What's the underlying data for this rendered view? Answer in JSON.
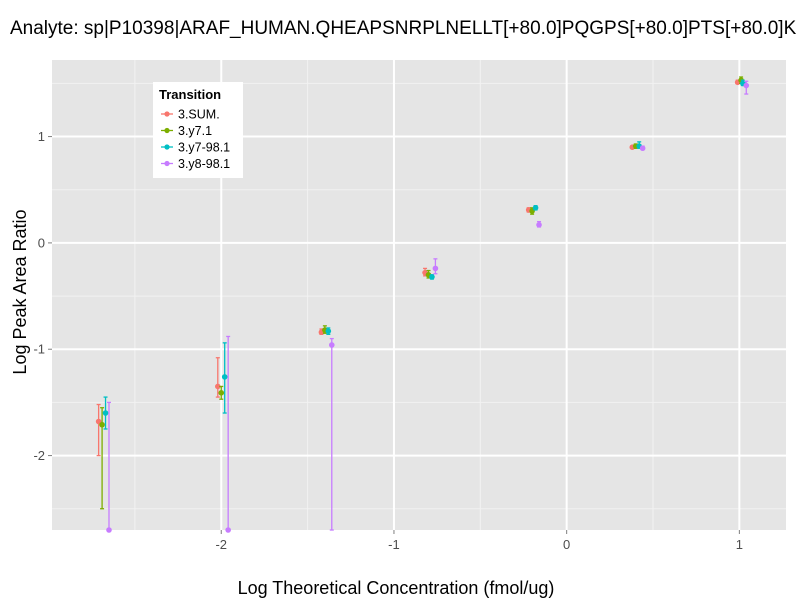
{
  "chart_data": {
    "type": "scatter",
    "title": "Analyte: sp|P10398|ARAF_HUMAN.QHEAPSNRPLNELLT[+80.0]PQGPS[+80.0]PTS[+80.0]K",
    "xlabel": "Log Theoretical Concentration (fmol/ug)",
    "ylabel": "Log Peak Area Ratio",
    "xlim": [
      -2.98,
      1.27
    ],
    "ylim": [
      -2.7,
      1.72
    ],
    "x_ticks": [
      {
        "value": -2,
        "label": "-2"
      },
      {
        "value": -1,
        "label": "-1"
      },
      {
        "value": 0,
        "label": "0"
      },
      {
        "value": 1,
        "label": "1"
      }
    ],
    "y_ticks": [
      {
        "value": -2,
        "label": "-2"
      },
      {
        "value": -1,
        "label": "-1"
      },
      {
        "value": 0,
        "label": "0"
      },
      {
        "value": 1,
        "label": "1"
      }
    ],
    "legend": {
      "title": "Transition",
      "position": "top-left"
    },
    "series": [
      {
        "name": "3.SUM.",
        "color": "#F8766D",
        "points": [
          {
            "x": -2.71,
            "y": -1.68,
            "ymin": -2.0,
            "ymax": -1.52
          },
          {
            "x": -2.02,
            "y": -1.35,
            "ymin": -1.45,
            "ymax": -1.08
          },
          {
            "x": -1.42,
            "y": -0.84,
            "ymin": -0.86,
            "ymax": -0.81
          },
          {
            "x": -0.82,
            "y": -0.28,
            "ymin": -0.31,
            "ymax": -0.24
          },
          {
            "x": -0.22,
            "y": 0.31,
            "ymin": 0.29,
            "ymax": 0.33
          },
          {
            "x": 0.38,
            "y": 0.9,
            "ymin": 0.89,
            "ymax": 0.91
          },
          {
            "x": 0.99,
            "y": 1.51,
            "ymin": 1.5,
            "ymax": 1.53
          }
        ]
      },
      {
        "name": "3.y7.1",
        "color": "#7CAE00",
        "points": [
          {
            "x": -2.69,
            "y": -1.71,
            "ymin": -2.5,
            "ymax": -1.55
          },
          {
            "x": -2.0,
            "y": -1.41,
            "ymin": -1.47,
            "ymax": -1.35
          },
          {
            "x": -1.4,
            "y": -0.82,
            "ymin": -0.85,
            "ymax": -0.78
          },
          {
            "x": -0.8,
            "y": -0.3,
            "ymin": -0.33,
            "ymax": -0.26
          },
          {
            "x": -0.2,
            "y": 0.3,
            "ymin": 0.27,
            "ymax": 0.33
          },
          {
            "x": 0.4,
            "y": 0.91,
            "ymin": 0.89,
            "ymax": 0.93
          },
          {
            "x": 1.01,
            "y": 1.53,
            "ymin": 1.5,
            "ymax": 1.56
          }
        ]
      },
      {
        "name": "3.y7-98.1",
        "color": "#00BFC4",
        "points": [
          {
            "x": -2.67,
            "y": -1.6,
            "ymin": -1.75,
            "ymax": -1.45
          },
          {
            "x": -1.98,
            "y": -1.26,
            "ymin": -1.6,
            "ymax": -0.94
          },
          {
            "x": -1.38,
            "y": -0.83,
            "ymin": -0.86,
            "ymax": -0.8
          },
          {
            "x": -0.78,
            "y": -0.32,
            "ymin": -0.34,
            "ymax": -0.3
          },
          {
            "x": -0.18,
            "y": 0.33,
            "ymin": 0.31,
            "ymax": 0.35
          },
          {
            "x": 0.42,
            "y": 0.91,
            "ymin": 0.89,
            "ymax": 0.95
          },
          {
            "x": 1.02,
            "y": 1.5,
            "ymin": 1.48,
            "ymax": 1.53
          }
        ]
      },
      {
        "name": "3.y8-98.1",
        "color": "#C77CFF",
        "points": [
          {
            "x": -2.65,
            "y": -2.7,
            "ymin": -2.7,
            "ymax": -1.5
          },
          {
            "x": -1.96,
            "y": -2.7,
            "ymin": -2.7,
            "ymax": -0.88
          },
          {
            "x": -1.36,
            "y": -0.96,
            "ymin": -2.7,
            "ymax": -0.9
          },
          {
            "x": -0.76,
            "y": -0.24,
            "ymin": -0.29,
            "ymax": -0.15
          },
          {
            "x": -0.16,
            "y": 0.17,
            "ymin": 0.15,
            "ymax": 0.2
          },
          {
            "x": 0.44,
            "y": 0.89,
            "ymin": 0.88,
            "ymax": 0.91
          },
          {
            "x": 1.04,
            "y": 1.48,
            "ymin": 1.4,
            "ymax": 1.52
          }
        ]
      }
    ]
  }
}
